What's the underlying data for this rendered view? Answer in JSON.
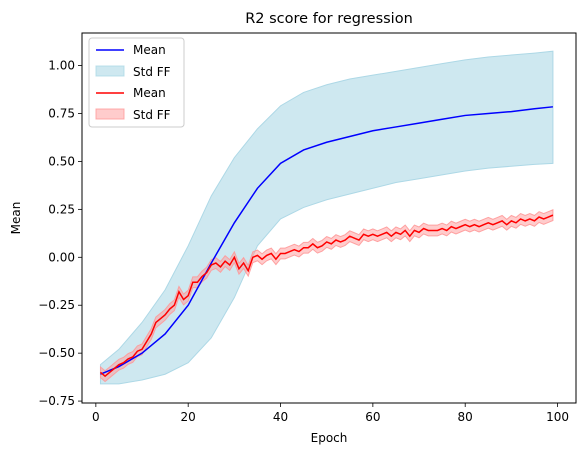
{
  "chart_data": {
    "type": "line",
    "title": "R2 score for regression",
    "xlabel": "Epoch",
    "ylabel": "Mean",
    "xlim": [
      -3,
      104
    ],
    "ylim": [
      -0.76,
      1.17
    ],
    "xticks": [
      0,
      20,
      40,
      60,
      80,
      100
    ],
    "yticks": [
      -0.75,
      -0.5,
      -0.25,
      0.0,
      0.25,
      0.5,
      0.75,
      1.0
    ],
    "xtick_labels": [
      "0",
      "20",
      "40",
      "60",
      "80",
      "100"
    ],
    "ytick_labels": [
      "−0.75",
      "−0.50",
      "−0.25",
      "0.00",
      "0.25",
      "0.50",
      "0.75",
      "1.00"
    ],
    "grid": false,
    "legend_position": "top-left",
    "legend": [
      "Mean",
      "Std FF",
      "Mean",
      "Std FF"
    ],
    "series": [
      {
        "name": "Mean",
        "color": "#0000ff",
        "band_color": "#add8e6",
        "band_name": "Std FF",
        "x": [
          1,
          5,
          10,
          15,
          20,
          25,
          30,
          35,
          40,
          45,
          50,
          55,
          60,
          65,
          70,
          75,
          80,
          85,
          90,
          95,
          99
        ],
        "mean": [
          -0.61,
          -0.57,
          -0.5,
          -0.4,
          -0.25,
          -0.03,
          0.18,
          0.36,
          0.49,
          0.56,
          0.6,
          0.63,
          0.66,
          0.68,
          0.7,
          0.72,
          0.74,
          0.75,
          0.76,
          0.775,
          0.785
        ],
        "upper": [
          -0.56,
          -0.48,
          -0.34,
          -0.17,
          0.06,
          0.32,
          0.52,
          0.67,
          0.79,
          0.86,
          0.9,
          0.93,
          0.95,
          0.97,
          0.99,
          1.01,
          1.03,
          1.045,
          1.055,
          1.065,
          1.075
        ],
        "lower": [
          -0.66,
          -0.66,
          -0.64,
          -0.61,
          -0.55,
          -0.42,
          -0.21,
          0.06,
          0.2,
          0.26,
          0.3,
          0.33,
          0.36,
          0.39,
          0.41,
          0.43,
          0.45,
          0.465,
          0.475,
          0.485,
          0.49
        ]
      },
      {
        "name": "Mean",
        "color": "#ff0000",
        "band_color": "#ff9999",
        "band_name": "Std FF",
        "x": [
          1,
          2,
          3,
          4,
          5,
          6,
          7,
          8,
          9,
          10,
          11,
          12,
          13,
          14,
          15,
          16,
          17,
          18,
          19,
          20,
          21,
          22,
          23,
          24,
          25,
          26,
          27,
          28,
          29,
          30,
          31,
          32,
          33,
          34,
          35,
          36,
          37,
          38,
          39,
          40,
          41,
          42,
          43,
          44,
          45,
          46,
          47,
          48,
          49,
          50,
          51,
          52,
          53,
          54,
          55,
          56,
          57,
          58,
          59,
          60,
          61,
          62,
          63,
          64,
          65,
          66,
          67,
          68,
          69,
          70,
          71,
          72,
          73,
          74,
          75,
          76,
          77,
          78,
          79,
          80,
          81,
          82,
          83,
          84,
          85,
          86,
          87,
          88,
          89,
          90,
          91,
          92,
          93,
          94,
          95,
          96,
          97,
          98,
          99
        ],
        "mean": [
          -0.6,
          -0.62,
          -0.6,
          -0.58,
          -0.56,
          -0.55,
          -0.53,
          -0.52,
          -0.49,
          -0.48,
          -0.44,
          -0.4,
          -0.34,
          -0.32,
          -0.3,
          -0.27,
          -0.25,
          -0.18,
          -0.22,
          -0.2,
          -0.13,
          -0.13,
          -0.1,
          -0.08,
          -0.04,
          -0.03,
          -0.05,
          -0.02,
          -0.04,
          0.0,
          -0.06,
          -0.03,
          -0.07,
          0.0,
          0.01,
          -0.01,
          0.01,
          0.02,
          -0.01,
          0.02,
          0.02,
          0.03,
          0.04,
          0.03,
          0.05,
          0.05,
          0.07,
          0.05,
          0.06,
          0.08,
          0.07,
          0.09,
          0.08,
          0.09,
          0.11,
          0.1,
          0.09,
          0.12,
          0.11,
          0.12,
          0.11,
          0.12,
          0.13,
          0.11,
          0.13,
          0.12,
          0.14,
          0.11,
          0.14,
          0.13,
          0.15,
          0.14,
          0.14,
          0.14,
          0.15,
          0.14,
          0.16,
          0.15,
          0.16,
          0.17,
          0.16,
          0.17,
          0.16,
          0.17,
          0.18,
          0.17,
          0.18,
          0.19,
          0.17,
          0.19,
          0.18,
          0.2,
          0.19,
          0.2,
          0.19,
          0.21,
          0.2,
          0.21,
          0.22
        ]
      }
    ],
    "red_band_halfwidth": 0.028
  }
}
